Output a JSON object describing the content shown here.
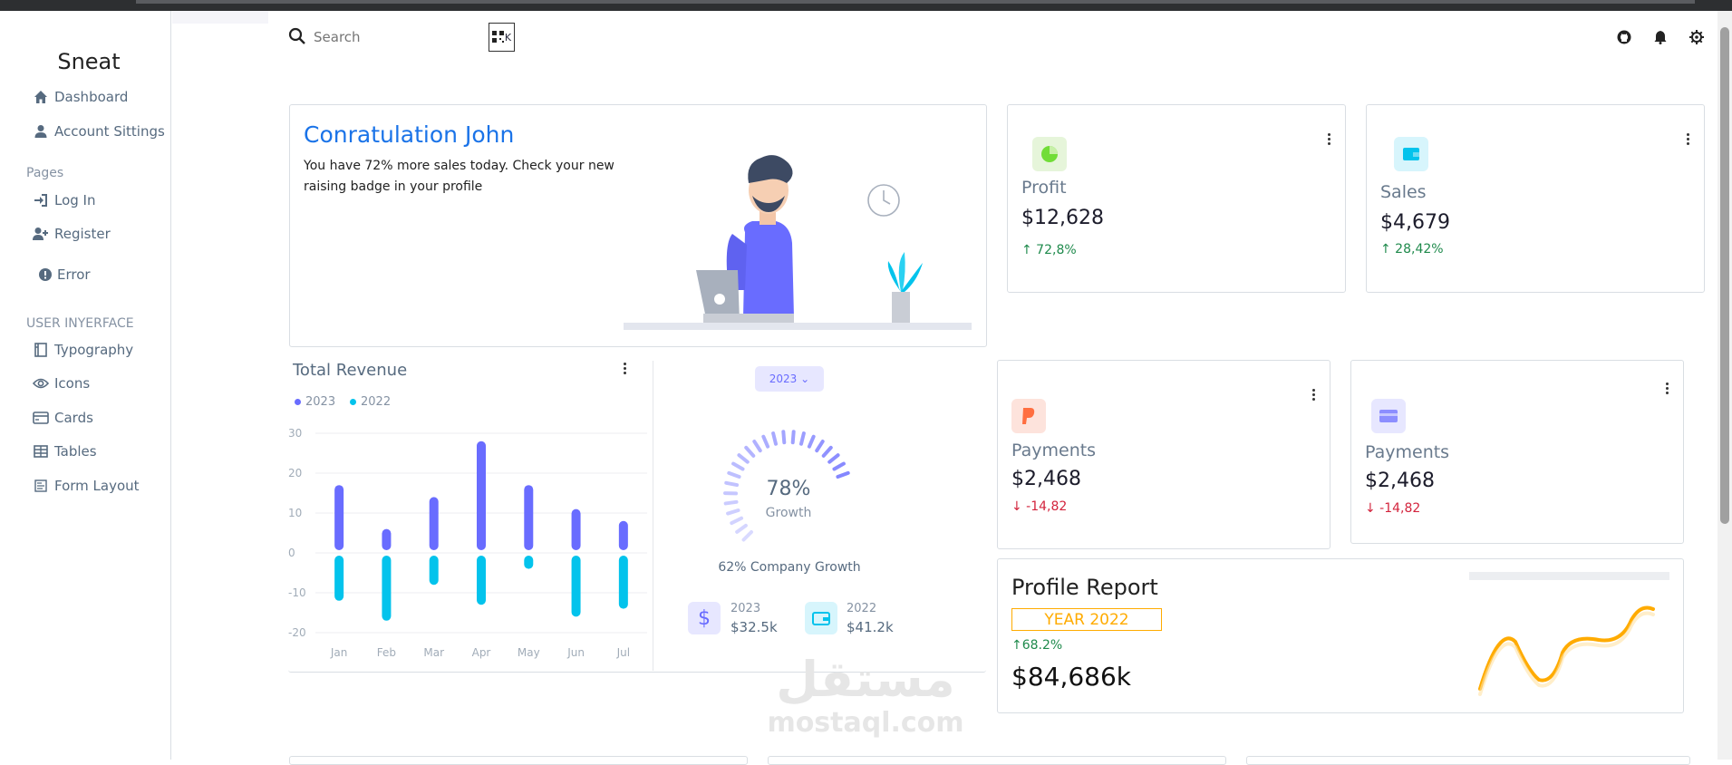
{
  "sidebar": {
    "brand": "Sneat",
    "items": [
      {
        "label": "Dashboard",
        "icon": "home-icon"
      },
      {
        "label": "Account Sittings",
        "icon": "user-icon"
      }
    ],
    "pages_head": "Pages",
    "pages": [
      {
        "label": "Log In",
        "icon": "login-icon"
      },
      {
        "label": "Register",
        "icon": "user-plus-icon"
      },
      {
        "label": "Error",
        "icon": "alert-icon"
      }
    ],
    "ui_head": "USER INYERFACE",
    "ui": [
      {
        "label": "Typography",
        "icon": "typography-icon"
      },
      {
        "label": "Icons",
        "icon": "eye-icon"
      },
      {
        "label": "Cards",
        "icon": "card-icon"
      },
      {
        "label": "Tables",
        "icon": "table-icon"
      },
      {
        "label": "Form Layout",
        "icon": "form-icon"
      }
    ]
  },
  "header": {
    "search_placeholder": "Search",
    "qr_label": "K"
  },
  "welcome": {
    "title": "Conratulation John",
    "text": "You have 72% more sales today. Check your new raising badge in your profile"
  },
  "stats": {
    "profit": {
      "label": "Profit",
      "value": "$12,628",
      "change": "↑ 72,8%"
    },
    "sales": {
      "label": "Sales",
      "value": "$4,679",
      "change": "↑ 28,42%"
    },
    "payments1": {
      "label": "Payments",
      "value": "$2,468",
      "change": "↓ -14,82"
    },
    "payments2": {
      "label": "Payments",
      "value": "$2,468",
      "change": "↓ -14,82"
    }
  },
  "revenue": {
    "title": "Total Revenue",
    "legend": [
      "2023",
      "2022"
    ],
    "year_button": "2023",
    "growth_pct": "78%",
    "growth_label": "Growth",
    "company_growth": "62% Company Growth",
    "mini": [
      {
        "year": "2023",
        "value": "$32.5k"
      },
      {
        "year": "2022",
        "value": "$41.2k"
      }
    ]
  },
  "profile_report": {
    "title": "Profile Report",
    "badge": "YEAR 2022",
    "change": "↑68.2%",
    "value": "$84,686k"
  },
  "watermark": {
    "arabic": "مستقل",
    "latin": "mostaql.com"
  },
  "colors": {
    "primary": "#696cff",
    "info": "#03c3ec",
    "success": "#1f8a4c",
    "danger": "#d3243d",
    "warning": "#ffab00",
    "title_blue": "#1a73e8"
  },
  "chart_data": {
    "type": "bar",
    "categories": [
      "Jan",
      "Feb",
      "Mar",
      "Apr",
      "May",
      "Jun",
      "Jul"
    ],
    "series": [
      {
        "name": "2023",
        "values": [
          17,
          6,
          14,
          28,
          17,
          11,
          8
        ]
      },
      {
        "name": "2022",
        "values": [
          -12,
          -17,
          -8,
          -13,
          -4,
          -16,
          -14
        ]
      }
    ],
    "yticks": [
      "30",
      "20",
      "10",
      "0",
      "-10",
      "-20"
    ],
    "ylim": [
      -20,
      30
    ],
    "grid": true,
    "legend_position": "top-left"
  }
}
